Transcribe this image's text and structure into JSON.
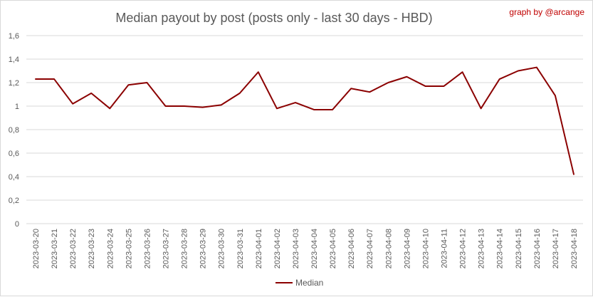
{
  "chart_data": {
    "type": "line",
    "title": "Median payout by post (posts only - last 30 days - HBD)",
    "credit": "graph by @arcange",
    "xlabel": "",
    "ylabel": "",
    "ylim": [
      0,
      1.6
    ],
    "yticks": [
      "0",
      "0,2",
      "0,4",
      "0,6",
      "0,8",
      "1",
      "1,2",
      "1,4",
      "1,6"
    ],
    "grid": true,
    "legend_position": "bottom",
    "categories": [
      "2023-03-20",
      "2023-03-21",
      "2023-03-22",
      "2023-03-23",
      "2023-03-24",
      "2023-03-25",
      "2023-03-26",
      "2023-03-27",
      "2023-03-28",
      "2023-03-29",
      "2023-03-30",
      "2023-03-31",
      "2023-04-01",
      "2023-04-02",
      "2023-04-03",
      "2023-04-04",
      "2023-04-05",
      "2023-04-06",
      "2023-04-07",
      "2023-04-08",
      "2023-04-09",
      "2023-04-10",
      "2023-04-11",
      "2023-04-12",
      "2023-04-13",
      "2023-04-14",
      "2023-04-15",
      "2023-04-16",
      "2023-04-17",
      "2023-04-18"
    ],
    "series": [
      {
        "name": "Median",
        "color": "#8b0000",
        "values": [
          1.23,
          1.23,
          1.02,
          1.11,
          0.98,
          1.18,
          1.2,
          1.0,
          1.0,
          0.99,
          1.01,
          1.11,
          1.29,
          0.98,
          1.03,
          0.97,
          0.97,
          1.15,
          1.12,
          1.2,
          1.25,
          1.17,
          1.17,
          1.29,
          0.98,
          1.23,
          1.3,
          1.33,
          1.09,
          0.42
        ]
      }
    ]
  }
}
